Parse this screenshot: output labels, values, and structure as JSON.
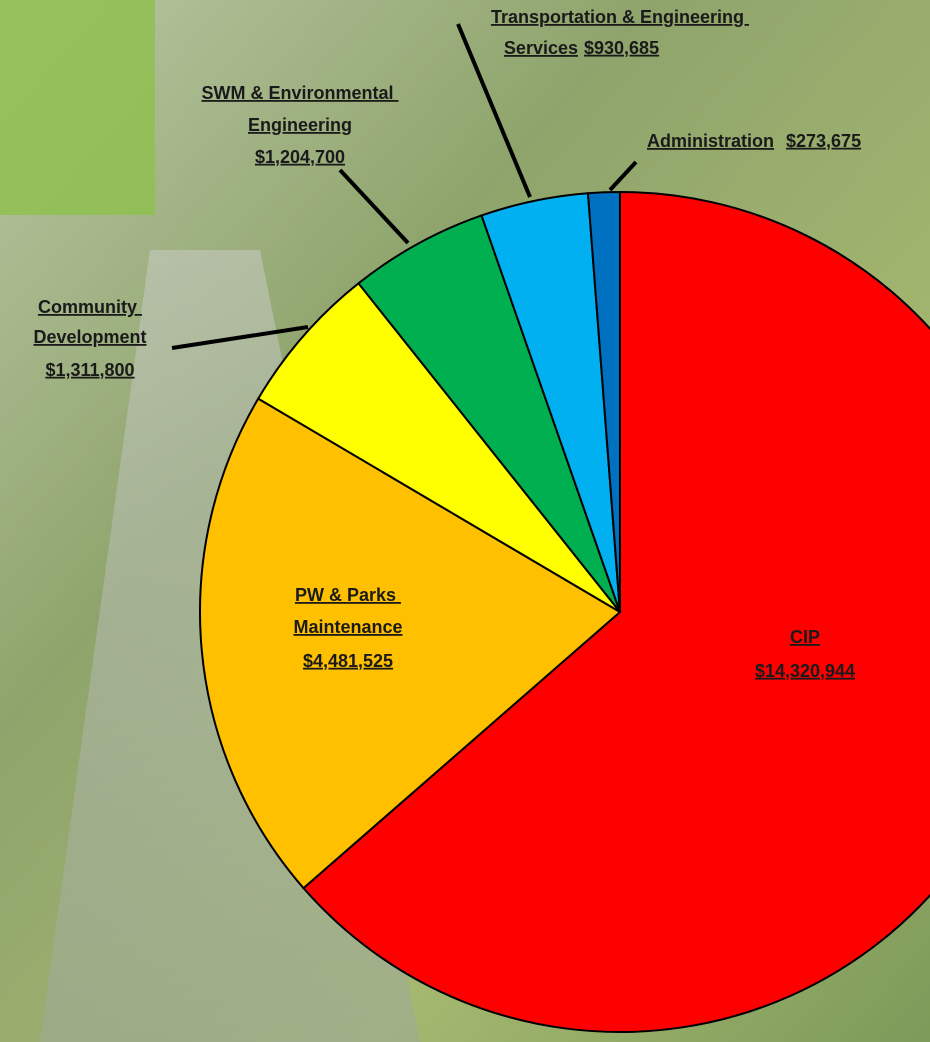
{
  "chart_data": {
    "type": "pie",
    "categories": [
      "CIP",
      "PW & Parks Maintenance",
      "Community Development",
      "SWM & Environmental Engineering",
      "Transportation & Engineering Services",
      "Administration"
    ],
    "values": [
      14320944,
      4481525,
      1311800,
      1204700,
      930685,
      273675
    ],
    "value_labels": [
      "$14,320,944",
      "$4,481,525",
      "$1,311,800",
      "$1,204,700",
      "$930,685",
      "$273,675"
    ],
    "colors": [
      "#ff0000",
      "#ffc000",
      "#ffff00",
      "#00b050",
      "#00b0f0",
      "#0070c0"
    ]
  }
}
